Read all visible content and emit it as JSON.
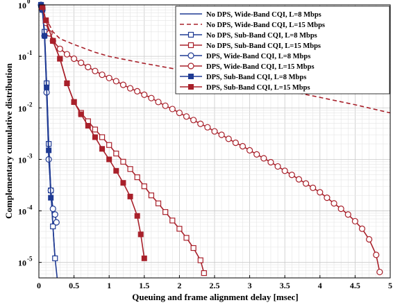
{
  "chart_data": {
    "type": "line",
    "title": "",
    "xlabel": "Queuing and frame alignment delay [msec]",
    "ylabel": "Complementary cumulative distribution",
    "xlim": [
      0,
      5
    ],
    "ylim": [
      5e-06,
      1
    ],
    "y_scale": "log",
    "x_ticks": [
      "0",
      "0.5",
      "1",
      "1.5",
      "2",
      "2.5",
      "3",
      "3.5",
      "4",
      "4.5",
      "5"
    ],
    "y_ticks": [
      {
        "value": 1,
        "label": "10",
        "exp": "0"
      },
      {
        "value": 0.1,
        "label": "10",
        "exp": "-1"
      },
      {
        "value": 0.01,
        "label": "10",
        "exp": "-2"
      },
      {
        "value": 0.001,
        "label": "10",
        "exp": "-3"
      },
      {
        "value": 0.0001,
        "label": "10",
        "exp": "-4"
      },
      {
        "value": 1e-05,
        "label": "10",
        "exp": "-5"
      }
    ],
    "grid": true,
    "legend_position": "top-right",
    "colors": {
      "blue": "#1f3a93",
      "red": "#a8202a"
    },
    "series": [
      {
        "name": "No DPS, Wide-Band CQI, L=8 Mbps",
        "color": "#1f3a93",
        "dash": false,
        "marker": "none",
        "x": [
          0.03,
          0.05,
          0.08,
          0.11,
          0.14,
          0.17,
          0.2,
          0.23,
          0.26
        ],
        "y": [
          1.0,
          0.85,
          0.3,
          0.03,
          0.002,
          0.00025,
          5e-05,
          1.2e-05,
          5e-06
        ]
      },
      {
        "name": "No DPS, Wide-Band CQI, L=15 Mbps",
        "color": "#a8202a",
        "dash": true,
        "marker": "none",
        "x": [
          0.03,
          0.1,
          0.2,
          0.3,
          0.5,
          0.8,
          1.0,
          1.5,
          2.0,
          2.5,
          3.0,
          3.5,
          4.0,
          4.5,
          5.0
        ],
        "y": [
          1.0,
          0.55,
          0.3,
          0.22,
          0.17,
          0.12,
          0.1,
          0.073,
          0.055,
          0.04,
          0.03,
          0.022,
          0.016,
          0.0115,
          0.008
        ]
      },
      {
        "name": "No DPS, Sub-Band CQI, L=8 Mbps",
        "color": "#1f3a93",
        "dash": false,
        "marker": "open-square",
        "x": [
          0.03,
          0.05,
          0.08,
          0.11,
          0.14,
          0.17,
          0.2,
          0.23
        ],
        "y": [
          1.0,
          0.85,
          0.3,
          0.03,
          0.002,
          0.00025,
          5e-05,
          1.2e-05
        ]
      },
      {
        "name": "No DPS, Sub-Band CQI, L=15 Mbps",
        "color": "#a8202a",
        "dash": false,
        "marker": "open-square",
        "x": [
          0.05,
          0.1,
          0.2,
          0.3,
          0.4,
          0.5,
          0.6,
          0.7,
          0.8,
          0.9,
          1.0,
          1.1,
          1.2,
          1.3,
          1.4,
          1.5,
          1.6,
          1.7,
          1.8,
          1.9,
          2.0,
          2.1,
          2.2,
          2.3,
          2.35
        ],
        "y": [
          0.9,
          0.5,
          0.2,
          0.09,
          0.03,
          0.013,
          0.008,
          0.0055,
          0.0038,
          0.0027,
          0.0019,
          0.0013,
          0.0009,
          0.00065,
          0.00045,
          0.0003,
          0.0002,
          0.00014,
          9.5e-05,
          6.5e-05,
          4.5e-05,
          3e-05,
          1.9e-05,
          1.1e-05,
          6.2e-06
        ]
      },
      {
        "name": "DPS, Wide-Band CQI, L=8 Mbps",
        "color": "#1f3a93",
        "dash": false,
        "marker": "open-circle",
        "x": [
          0.03,
          0.05,
          0.08,
          0.11,
          0.14,
          0.17,
          0.2,
          0.23,
          0.25
        ],
        "y": [
          1.0,
          0.8,
          0.25,
          0.02,
          0.001,
          0.00025,
          0.00011,
          8.5e-05,
          6e-05
        ]
      },
      {
        "name": "DPS, Wide-Band CQI, L=15 Mbps",
        "color": "#a8202a",
        "dash": false,
        "marker": "open-circle",
        "x": [
          0.05,
          0.1,
          0.15,
          0.2,
          0.3,
          0.4,
          0.5,
          0.6,
          0.7,
          0.8,
          0.9,
          1.0,
          1.1,
          1.2,
          1.3,
          1.4,
          1.5,
          1.6,
          1.7,
          1.8,
          1.9,
          2.0,
          2.1,
          2.2,
          2.3,
          2.4,
          2.5,
          2.6,
          2.7,
          2.8,
          2.9,
          3.0,
          3.1,
          3.2,
          3.3,
          3.4,
          3.5,
          3.6,
          3.7,
          3.8,
          3.9,
          4.0,
          4.1,
          4.2,
          4.3,
          4.4,
          4.5,
          4.6,
          4.7,
          4.8,
          4.85
        ],
        "y": [
          0.85,
          0.45,
          0.28,
          0.2,
          0.14,
          0.11,
          0.09,
          0.075,
          0.062,
          0.052,
          0.044,
          0.038,
          0.033,
          0.028,
          0.024,
          0.021,
          0.018,
          0.0155,
          0.013,
          0.011,
          0.0095,
          0.008,
          0.0068,
          0.0058,
          0.0049,
          0.0042,
          0.0035,
          0.003,
          0.0025,
          0.0021,
          0.0018,
          0.0015,
          0.00125,
          0.00105,
          0.00088,
          0.00073,
          0.0006,
          0.0005,
          0.00041,
          0.00034,
          0.00028,
          0.00023,
          0.00018,
          0.00014,
          0.00011,
          8.5e-05,
          6.3e-05,
          4.5e-05,
          2.8e-05,
          1.4e-05,
          6.5e-06
        ]
      },
      {
        "name": "DPS, Sub-Band CQI, L=8 Mbps",
        "color": "#1f3a93",
        "dash": false,
        "marker": "filled-square",
        "x": [
          0.03,
          0.05,
          0.08,
          0.11,
          0.14,
          0.17
        ],
        "y": [
          1.0,
          0.8,
          0.25,
          0.025,
          0.0015,
          0.00018
        ]
      },
      {
        "name": "DPS, Sub-Band CQI, L=15 Mbps",
        "color": "#a8202a",
        "dash": false,
        "marker": "filled-square",
        "x": [
          0.05,
          0.1,
          0.2,
          0.3,
          0.4,
          0.5,
          0.6,
          0.7,
          0.8,
          0.9,
          1.0,
          1.1,
          1.2,
          1.3,
          1.4,
          1.45,
          1.5
        ],
        "y": [
          0.9,
          0.5,
          0.2,
          0.09,
          0.03,
          0.013,
          0.0075,
          0.0045,
          0.0027,
          0.0016,
          0.001,
          0.0006,
          0.00035,
          0.00019,
          8e-05,
          3.5e-05,
          1.2e-05
        ]
      }
    ]
  }
}
